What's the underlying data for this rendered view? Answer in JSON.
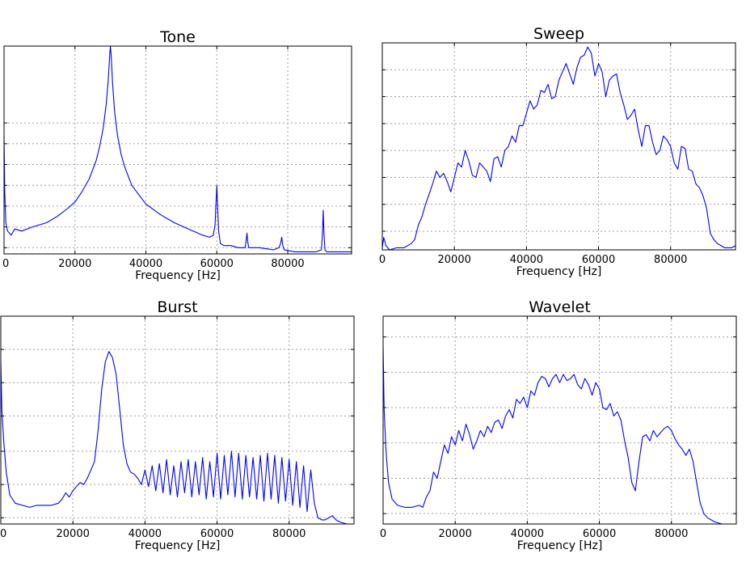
{
  "chart_data": [
    {
      "type": "line",
      "title": "Tone",
      "xlabel": "Frequency [Hz]",
      "ylabel": "",
      "xlim": [
        0,
        98000
      ],
      "ylim": [
        0,
        1
      ],
      "grid": true,
      "y_ticks": [
        0.03,
        0.13,
        0.23,
        0.33,
        0.43,
        0.53,
        0.63
      ],
      "x_ticks": [
        "0",
        "20000",
        "40000",
        "60000",
        "80000"
      ],
      "x_tick_values": [
        0,
        20000,
        40000,
        60000,
        80000
      ],
      "color": "#0000ff",
      "series": [
        {
          "x": [
            0,
            200,
            500,
            1000,
            2000,
            3000,
            5000,
            8000,
            10000,
            12000,
            15000,
            18000,
            20000,
            22000,
            24000,
            26000,
            27000,
            28000,
            28800,
            29400,
            29800,
            30000,
            30200,
            30600,
            31200,
            32000,
            33000,
            34000,
            36000,
            40000,
            44000,
            48000,
            52000,
            56000,
            58000,
            59000,
            59500,
            59800,
            60000,
            60200,
            60500,
            61000,
            62000,
            64000,
            66000,
            68000,
            68300,
            68500,
            68700,
            69000,
            72000,
            76000,
            77500,
            78000,
            78300,
            78600,
            79000,
            82000,
            86000,
            88000,
            89500,
            89800,
            90000,
            90200,
            90500,
            91000,
            94000,
            98000
          ],
          "y": [
            0.57,
            0.3,
            0.15,
            0.11,
            0.09,
            0.12,
            0.11,
            0.13,
            0.14,
            0.15,
            0.18,
            0.22,
            0.25,
            0.3,
            0.36,
            0.45,
            0.52,
            0.61,
            0.72,
            0.84,
            0.96,
            1.0,
            0.96,
            0.82,
            0.68,
            0.57,
            0.48,
            0.42,
            0.33,
            0.24,
            0.19,
            0.15,
            0.12,
            0.09,
            0.08,
            0.09,
            0.14,
            0.26,
            0.33,
            0.24,
            0.11,
            0.05,
            0.04,
            0.04,
            0.03,
            0.03,
            0.07,
            0.1,
            0.06,
            0.03,
            0.03,
            0.02,
            0.03,
            0.05,
            0.08,
            0.04,
            0.02,
            0.01,
            0.01,
            0.01,
            0.02,
            0.1,
            0.21,
            0.1,
            0.02,
            0.01,
            0.01,
            0.01
          ]
        }
      ]
    },
    {
      "type": "line",
      "title": "Sweep",
      "xlabel": "Frequency [Hz]",
      "ylabel": "",
      "xlim": [
        0,
        98000
      ],
      "ylim": [
        0,
        1
      ],
      "grid": true,
      "y_ticks": [
        0.09,
        0.22,
        0.35,
        0.48,
        0.61,
        0.74,
        0.87
      ],
      "x_ticks": [
        "0",
        "20000",
        "40000",
        "60000",
        "80000"
      ],
      "x_tick_values": [
        0,
        20000,
        40000,
        60000,
        80000
      ],
      "color": "#0000ff",
      "series": [
        {
          "x": [
            0,
            400,
            1000,
            2000,
            4000,
            6000,
            8000,
            9000,
            10000,
            11000,
            12000,
            13000,
            14000,
            15000,
            16000,
            17000,
            18000,
            19000,
            20000,
            21000,
            22000,
            23000,
            24000,
            25000,
            26000,
            27000,
            28000,
            29000,
            30000,
            31000,
            32000,
            33000,
            34000,
            35000,
            36000,
            37000,
            38000,
            39000,
            40000,
            41000,
            42000,
            43000,
            44000,
            45000,
            46000,
            47000,
            48000,
            49000,
            50000,
            51000,
            52000,
            53000,
            54000,
            55000,
            56000,
            57000,
            58000,
            59000,
            60000,
            61000,
            62000,
            63000,
            64000,
            65000,
            66000,
            67000,
            68000,
            69000,
            70000,
            71000,
            72000,
            73000,
            74000,
            75000,
            76000,
            77000,
            78000,
            79000,
            80000,
            81000,
            82000,
            83000,
            84000,
            85000,
            86000,
            87000,
            88000,
            89000,
            90000,
            91000,
            92000,
            93000,
            94000,
            95000,
            96000,
            97000,
            98000
          ],
          "y": [
            0.01,
            0.06,
            0.02,
            0.0,
            0.01,
            0.01,
            0.03,
            0.05,
            0.12,
            0.16,
            0.22,
            0.27,
            0.32,
            0.38,
            0.35,
            0.37,
            0.33,
            0.28,
            0.35,
            0.42,
            0.4,
            0.48,
            0.43,
            0.36,
            0.35,
            0.42,
            0.4,
            0.38,
            0.33,
            0.44,
            0.45,
            0.4,
            0.48,
            0.5,
            0.55,
            0.52,
            0.6,
            0.6,
            0.66,
            0.72,
            0.68,
            0.7,
            0.77,
            0.76,
            0.8,
            0.73,
            0.74,
            0.82,
            0.86,
            0.9,
            0.85,
            0.8,
            0.88,
            0.93,
            0.94,
            0.98,
            0.95,
            0.84,
            0.9,
            0.86,
            0.74,
            0.82,
            0.84,
            0.85,
            0.76,
            0.7,
            0.63,
            0.65,
            0.68,
            0.58,
            0.5,
            0.6,
            0.6,
            0.52,
            0.46,
            0.48,
            0.55,
            0.53,
            0.5,
            0.42,
            0.39,
            0.5,
            0.49,
            0.39,
            0.38,
            0.32,
            0.3,
            0.26,
            0.2,
            0.08,
            0.05,
            0.03,
            0.02,
            0.01,
            0.01,
            0.01,
            0.02
          ]
        }
      ]
    },
    {
      "type": "line",
      "title": "Burst",
      "xlabel": "Frequency [Hz]",
      "ylabel": "",
      "xlim": [
        0,
        98000
      ],
      "ylim": [
        0,
        1
      ],
      "grid": true,
      "y_ticks": [
        0.03,
        0.19,
        0.35,
        0.52,
        0.68,
        0.84
      ],
      "x_ticks": [
        "0",
        "20000",
        "40000",
        "60000",
        "80000"
      ],
      "x_tick_values": [
        0,
        20000,
        40000,
        60000,
        80000
      ],
      "color": "#0000ff",
      "series": [
        {
          "x": [
            0,
            300,
            800,
            1500,
            2500,
            4000,
            6000,
            8000,
            10000,
            12000,
            14000,
            16000,
            17000,
            18000,
            19000,
            20000,
            21000,
            22000,
            23000,
            24000,
            25000,
            26000,
            27000,
            28000,
            29000,
            30000,
            31000,
            32000,
            33000,
            34000,
            35000,
            36000,
            37000,
            38000,
            39000,
            40000,
            41000,
            42000,
            43000,
            44000,
            45000,
            46000,
            47000,
            48000,
            49000,
            50000,
            51000,
            52000,
            53000,
            54000,
            55000,
            56000,
            57000,
            58000,
            59000,
            60000,
            61000,
            62000,
            63000,
            64000,
            65000,
            66000,
            67000,
            68000,
            69000,
            70000,
            71000,
            72000,
            73000,
            74000,
            75000,
            76000,
            77000,
            78000,
            79000,
            80000,
            81000,
            82000,
            83000,
            84000,
            85000,
            86000,
            87000,
            88000,
            89000,
            90000,
            91000,
            92000,
            93000,
            94000,
            96000,
            98000
          ],
          "y": [
            0.78,
            0.55,
            0.4,
            0.25,
            0.14,
            0.1,
            0.09,
            0.08,
            0.09,
            0.09,
            0.09,
            0.1,
            0.12,
            0.15,
            0.13,
            0.16,
            0.18,
            0.2,
            0.19,
            0.22,
            0.26,
            0.3,
            0.45,
            0.65,
            0.78,
            0.83,
            0.8,
            0.72,
            0.55,
            0.38,
            0.29,
            0.25,
            0.24,
            0.22,
            0.19,
            0.26,
            0.18,
            0.28,
            0.16,
            0.29,
            0.15,
            0.31,
            0.14,
            0.28,
            0.13,
            0.3,
            0.15,
            0.31,
            0.13,
            0.3,
            0.14,
            0.32,
            0.12,
            0.3,
            0.13,
            0.34,
            0.12,
            0.33,
            0.14,
            0.35,
            0.13,
            0.34,
            0.12,
            0.33,
            0.13,
            0.32,
            0.12,
            0.33,
            0.11,
            0.34,
            0.12,
            0.33,
            0.1,
            0.32,
            0.11,
            0.31,
            0.09,
            0.3,
            0.08,
            0.28,
            0.06,
            0.26,
            0.1,
            0.03,
            0.02,
            0.02,
            0.03,
            0.04,
            0.02,
            0.01,
            0.0,
            0.0
          ]
        }
      ]
    },
    {
      "type": "line",
      "title": "Wavelet",
      "xlabel": "Frequency [Hz]",
      "ylabel": "",
      "xlim": [
        0,
        98000
      ],
      "ylim": [
        0,
        1
      ],
      "grid": true,
      "y_ticks": [
        0.05,
        0.22,
        0.39,
        0.56,
        0.73,
        0.9
      ],
      "x_ticks": [
        "0",
        "20000",
        "40000",
        "60000",
        "80000"
      ],
      "x_tick_values": [
        0,
        20000,
        40000,
        60000,
        80000
      ],
      "color": "#0000ff",
      "series": [
        {
          "x": [
            0,
            300,
            800,
            1500,
            2500,
            4000,
            6000,
            8000,
            10000,
            11000,
            12000,
            13000,
            14000,
            15000,
            16000,
            17000,
            18000,
            19000,
            20000,
            21000,
            22000,
            23000,
            24000,
            25000,
            26000,
            27000,
            28000,
            29000,
            30000,
            31000,
            32000,
            33000,
            34000,
            35000,
            36000,
            37000,
            38000,
            39000,
            40000,
            41000,
            42000,
            43000,
            44000,
            45000,
            46000,
            47000,
            48000,
            49000,
            50000,
            51000,
            52000,
            53000,
            54000,
            55000,
            56000,
            57000,
            58000,
            59000,
            60000,
            61000,
            62000,
            63000,
            64000,
            65000,
            66000,
            67000,
            68000,
            69000,
            70000,
            71000,
            72000,
            73000,
            74000,
            75000,
            76000,
            77000,
            78000,
            79000,
            80000,
            81000,
            82000,
            83000,
            84000,
            85000,
            86000,
            87000,
            88000,
            89000,
            90000,
            92000,
            94000,
            96000,
            98000
          ],
          "y": [
            0.85,
            0.55,
            0.35,
            0.2,
            0.12,
            0.09,
            0.08,
            0.08,
            0.09,
            0.08,
            0.13,
            0.16,
            0.25,
            0.22,
            0.3,
            0.38,
            0.34,
            0.42,
            0.38,
            0.45,
            0.4,
            0.48,
            0.43,
            0.36,
            0.4,
            0.45,
            0.42,
            0.47,
            0.44,
            0.49,
            0.5,
            0.46,
            0.52,
            0.55,
            0.51,
            0.6,
            0.58,
            0.61,
            0.56,
            0.64,
            0.62,
            0.68,
            0.71,
            0.7,
            0.66,
            0.7,
            0.72,
            0.68,
            0.72,
            0.69,
            0.7,
            0.72,
            0.67,
            0.65,
            0.7,
            0.67,
            0.62,
            0.68,
            0.65,
            0.56,
            0.55,
            0.58,
            0.52,
            0.54,
            0.5,
            0.4,
            0.32,
            0.2,
            0.16,
            0.3,
            0.42,
            0.43,
            0.4,
            0.45,
            0.42,
            0.44,
            0.46,
            0.47,
            0.45,
            0.41,
            0.38,
            0.36,
            0.33,
            0.36,
            0.3,
            0.2,
            0.1,
            0.05,
            0.03,
            0.01,
            0.0,
            0.0,
            0.0
          ]
        }
      ]
    }
  ]
}
